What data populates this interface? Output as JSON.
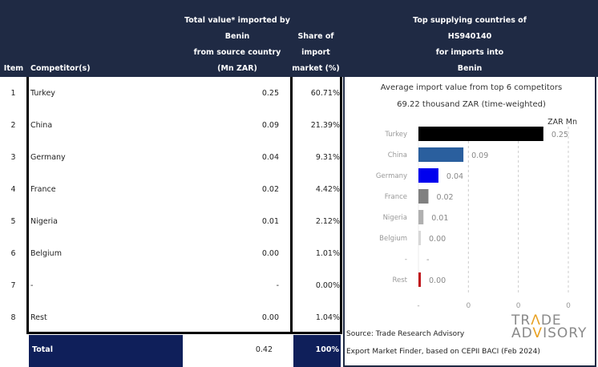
{
  "header": {
    "item": "Item",
    "competitor": "Competitor(s)",
    "value": [
      "Total value* imported by",
      "Benin",
      "from source country",
      "(Mn ZAR)"
    ],
    "share": [
      "Share of",
      "import",
      "market (%)"
    ],
    "chart": [
      "Top supplying countries of",
      "HS940140",
      "for imports into",
      "Benin"
    ]
  },
  "rows": [
    {
      "item": "1",
      "name": "Turkey",
      "value": "0.25",
      "share": "60.71%"
    },
    {
      "item": "2",
      "name": "China",
      "value": "0.09",
      "share": "21.39%"
    },
    {
      "item": "3",
      "name": "Germany",
      "value": "0.04",
      "share": "9.31%"
    },
    {
      "item": "4",
      "name": "France",
      "value": "0.02",
      "share": "4.42%"
    },
    {
      "item": "5",
      "name": "Nigeria",
      "value": "0.01",
      "share": "2.12%"
    },
    {
      "item": "6",
      "name": "Belgium",
      "value": "0.00",
      "share": "1.01%"
    },
    {
      "item": "7",
      "name": "-",
      "value": "-",
      "share": "0.00%"
    },
    {
      "item": "8",
      "name": "Rest",
      "value": "0.00",
      "share": "1.04%"
    }
  ],
  "total": {
    "label": "Total",
    "value": "0.42",
    "share": "100%"
  },
  "colors": {
    "navy": "#1f2a44"
  },
  "chart_data": {
    "type": "bar",
    "orientation": "horizontal",
    "title": "Average import value from top 6 competitors",
    "subtitle": "69.22 thousand ZAR (time-weighted)",
    "unit": "ZAR Mn",
    "categories": [
      "Turkey",
      "China",
      "Germany",
      "France",
      "Nigeria",
      "Belgium",
      "-",
      "Rest"
    ],
    "values": [
      0.25,
      0.09,
      0.04,
      0.02,
      0.01,
      0.0,
      null,
      0.0
    ],
    "labels": [
      "0.25",
      "0.09",
      "0.04",
      "0.02",
      "0.01",
      "0.00",
      "-",
      "0.00"
    ],
    "colors": [
      "#000000",
      "#2a5f9e",
      "#0000ee",
      "#808080",
      "#b0b0b0",
      "#d8d8d8",
      "#d8d8d8",
      "#c0161c"
    ],
    "xticks": [
      {
        "v": 0,
        "label": "-"
      },
      {
        "v": 0.1,
        "label": "0"
      },
      {
        "v": 0.2,
        "label": "0"
      },
      {
        "v": 0.3,
        "label": "0"
      }
    ],
    "xlim": [
      0,
      0.3
    ],
    "grid": true
  },
  "source": [
    "Source: Trade Research Advisory",
    "Export Market Finder, based on CEPII BACI (Feb 2024)"
  ],
  "logo": [
    "TRADE",
    "ADVISORY"
  ]
}
